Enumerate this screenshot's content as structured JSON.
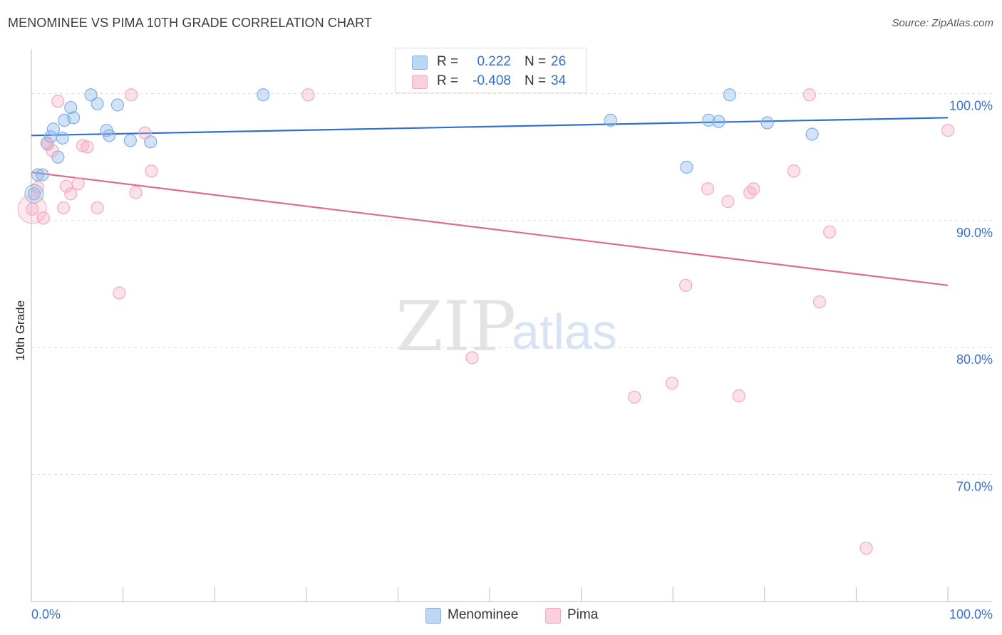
{
  "title": "MENOMINEE VS PIMA 10TH GRADE CORRELATION CHART",
  "source": "Source: ZipAtlas.com",
  "watermark": {
    "zip": "ZIP",
    "atlas": "atlas"
  },
  "legend": {
    "rows": [
      {
        "r_label": "R =",
        "r_value": "0.222",
        "n_label": "N =",
        "n_value": "26",
        "color": "#a8c8f0"
      },
      {
        "r_label": "R =",
        "r_value": "-0.408",
        "n_label": "N =",
        "n_value": "34",
        "color": "#f6b9cc"
      }
    ]
  },
  "bottom_legend": [
    {
      "label": "Menominee",
      "color": "#a8c8f0"
    },
    {
      "label": "Pima",
      "color": "#f6b9cc"
    }
  ],
  "chart_data": {
    "type": "scatter",
    "title": "MENOMINEE VS PIMA 10TH GRADE CORRELATION CHART",
    "xlabel": "",
    "ylabel": "10th Grade",
    "xlim": [
      0,
      100
    ],
    "ylim": [
      60,
      103.5
    ],
    "x_tick_labels": [
      "0.0%",
      "100.0%"
    ],
    "y_ticks": [
      70,
      80,
      90,
      100
    ],
    "y_tick_labels": [
      "70.0%",
      "80.0%",
      "90.0%",
      "100.0%"
    ],
    "grid": "horizontal dashed",
    "legend_placement": "top-center",
    "series": [
      {
        "name": "Menominee",
        "color": "#7fb0e8",
        "line_color": "#2f6fd1",
        "trend": {
          "y_at_0": 96.7,
          "y_at_100": 98.1
        },
        "points": [
          {
            "x": 0.3,
            "y": 92.1
          },
          {
            "x": 0.7,
            "y": 93.6
          },
          {
            "x": 1.2,
            "y": 93.6
          },
          {
            "x": 1.7,
            "y": 96.1
          },
          {
            "x": 2.1,
            "y": 96.6
          },
          {
            "x": 2.4,
            "y": 97.2
          },
          {
            "x": 2.9,
            "y": 95.0
          },
          {
            "x": 3.4,
            "y": 96.5
          },
          {
            "x": 3.6,
            "y": 97.9
          },
          {
            "x": 4.3,
            "y": 98.9
          },
          {
            "x": 4.6,
            "y": 98.1
          },
          {
            "x": 6.5,
            "y": 99.9
          },
          {
            "x": 7.2,
            "y": 99.2
          },
          {
            "x": 8.2,
            "y": 97.1
          },
          {
            "x": 8.5,
            "y": 96.7
          },
          {
            "x": 9.4,
            "y": 99.1
          },
          {
            "x": 10.8,
            "y": 96.3
          },
          {
            "x": 13.0,
            "y": 96.2
          },
          {
            "x": 25.3,
            "y": 99.9
          },
          {
            "x": 63.2,
            "y": 97.9
          },
          {
            "x": 71.5,
            "y": 94.2
          },
          {
            "x": 73.9,
            "y": 97.9
          },
          {
            "x": 75.0,
            "y": 97.8
          },
          {
            "x": 76.2,
            "y": 99.9
          },
          {
            "x": 80.3,
            "y": 97.7
          },
          {
            "x": 85.2,
            "y": 96.8
          }
        ]
      },
      {
        "name": "Pima",
        "color": "#f4a9c0",
        "line_color": "#e06a95",
        "trend": {
          "y_at_0": 93.8,
          "y_at_100": 84.9
        },
        "points": [
          {
            "x": 0.1,
            "y": 90.9
          },
          {
            "x": 0.7,
            "y": 92.6
          },
          {
            "x": 1.3,
            "y": 90.2
          },
          {
            "x": 1.8,
            "y": 96.0
          },
          {
            "x": 2.3,
            "y": 95.5
          },
          {
            "x": 2.9,
            "y": 99.4
          },
          {
            "x": 3.8,
            "y": 92.7
          },
          {
            "x": 4.3,
            "y": 92.1
          },
          {
            "x": 5.1,
            "y": 92.9
          },
          {
            "x": 5.6,
            "y": 95.9
          },
          {
            "x": 6.1,
            "y": 95.8
          },
          {
            "x": 7.2,
            "y": 91.0
          },
          {
            "x": 3.5,
            "y": 91.0
          },
          {
            "x": 9.6,
            "y": 84.3
          },
          {
            "x": 10.9,
            "y": 99.9
          },
          {
            "x": 11.4,
            "y": 92.2
          },
          {
            "x": 12.4,
            "y": 96.9
          },
          {
            "x": 13.1,
            "y": 93.9
          },
          {
            "x": 30.2,
            "y": 99.9
          },
          {
            "x": 48.1,
            "y": 79.2
          },
          {
            "x": 65.8,
            "y": 76.1
          },
          {
            "x": 69.9,
            "y": 77.2
          },
          {
            "x": 71.4,
            "y": 84.9
          },
          {
            "x": 73.8,
            "y": 92.5
          },
          {
            "x": 76.0,
            "y": 91.5
          },
          {
            "x": 77.2,
            "y": 76.2
          },
          {
            "x": 78.4,
            "y": 92.2
          },
          {
            "x": 78.8,
            "y": 92.5
          },
          {
            "x": 83.2,
            "y": 93.9
          },
          {
            "x": 84.9,
            "y": 99.9
          },
          {
            "x": 86.0,
            "y": 83.6
          },
          {
            "x": 87.1,
            "y": 89.1
          },
          {
            "x": 91.1,
            "y": 64.2
          },
          {
            "x": 100.0,
            "y": 97.1
          }
        ]
      }
    ]
  }
}
